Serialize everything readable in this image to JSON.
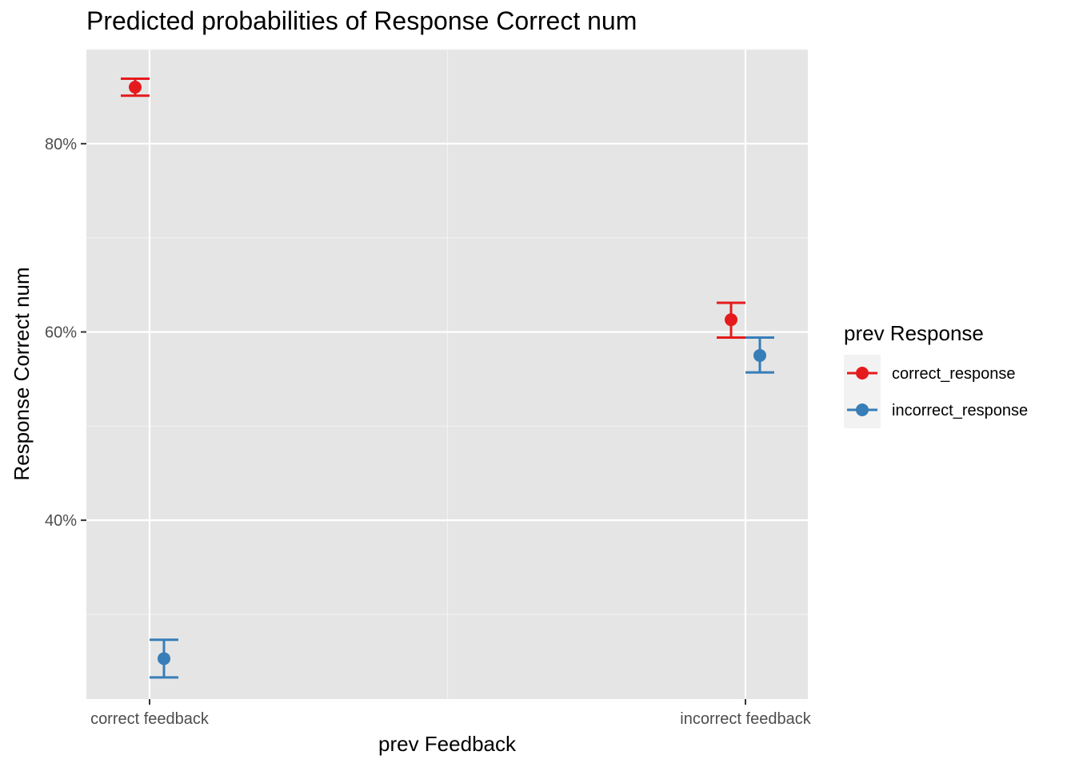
{
  "chart_data": {
    "type": "scatter",
    "title": "Predicted probabilities of Response Correct num",
    "xlabel": "prev Feedback",
    "ylabel": "Response Correct num",
    "categories": [
      "correct feedback",
      "incorrect feedback"
    ],
    "y_ticks": [
      0.4,
      0.6,
      0.8
    ],
    "y_tick_labels": [
      "40%",
      "60%",
      "80%"
    ],
    "ylim": [
      0.21,
      0.9
    ],
    "grid": true,
    "legend": {
      "title": "prev Response",
      "placement": "right"
    },
    "series": [
      {
        "name": "correct_response",
        "color": "#E41A1C",
        "values": [
          0.86,
          0.613
        ],
        "ci_low": [
          0.851,
          0.594
        ],
        "ci_high": [
          0.869,
          0.631
        ]
      },
      {
        "name": "incorrect_response",
        "color": "#377EB8",
        "values": [
          0.253,
          0.575
        ],
        "ci_low": [
          0.233,
          0.557
        ],
        "ci_high": [
          0.273,
          0.594
        ]
      }
    ]
  }
}
